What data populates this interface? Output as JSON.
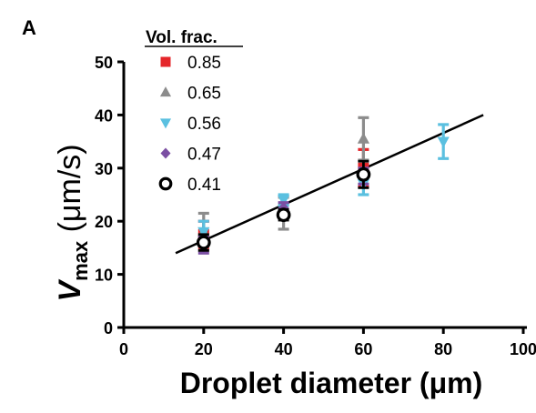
{
  "panel_label": "A",
  "chart_data": {
    "type": "scatter",
    "title": "",
    "xlabel": "Droplet diameter (μm)",
    "ylabel_main": "V",
    "ylabel_sub": "max",
    "ylabel_unit": " (μm/s)",
    "xlim": [
      0,
      100
    ],
    "ylim": [
      0,
      50
    ],
    "x_ticks": [
      0,
      20,
      40,
      60,
      80,
      100
    ],
    "x_tick_labels": [
      "0",
      "20",
      "40",
      "60",
      "80",
      "100"
    ],
    "y_ticks": [
      0,
      10,
      20,
      30,
      40,
      50
    ],
    "y_tick_labels": [
      "0",
      "10",
      "20",
      "30",
      "40",
      "50"
    ],
    "grid": false,
    "legend_title": "Vol. frac.",
    "legend_position": "top-left",
    "series": [
      {
        "name": "0.85",
        "marker": "square",
        "color": "#e5262a",
        "points": [
          {
            "x": 20,
            "y": 17.5,
            "err": 2.5
          },
          {
            "x": 60,
            "y": 30.0,
            "err": 3.5
          }
        ]
      },
      {
        "name": "0.65",
        "marker": "triangle-up",
        "color": "#8c8c8c",
        "points": [
          {
            "x": 20,
            "y": 18.0,
            "err": 3.5
          },
          {
            "x": 40,
            "y": 21.5,
            "err": 3.0
          },
          {
            "x": 60,
            "y": 35.5,
            "err": 4.0
          }
        ]
      },
      {
        "name": "0.56",
        "marker": "triangle-down",
        "color": "#5bc0e0",
        "points": [
          {
            "x": 20,
            "y": 18.0,
            "err": 2.0
          },
          {
            "x": 40,
            "y": 24.0,
            "err": 1.0
          },
          {
            "x": 60,
            "y": 27.0,
            "err": 2.0
          },
          {
            "x": 80,
            "y": 35.0,
            "err": 3.2
          }
        ]
      },
      {
        "name": "0.47",
        "marker": "diamond",
        "color": "#7b4fa3",
        "points": [
          {
            "x": 20,
            "y": 15.5,
            "err": 1.5
          },
          {
            "x": 40,
            "y": 22.5,
            "err": 1.0
          },
          {
            "x": 60,
            "y": 28.5,
            "err": 1.5
          }
        ]
      },
      {
        "name": "0.41",
        "marker": "open-circle",
        "color": "#000000",
        "points": [
          {
            "x": 20,
            "y": 16.0,
            "err": 1.5
          },
          {
            "x": 40,
            "y": 21.2,
            "err": 1.0
          },
          {
            "x": 60,
            "y": 28.8,
            "err": 2.5
          }
        ]
      }
    ],
    "fit_line": {
      "color": "#000000",
      "x": [
        13,
        90
      ],
      "y": [
        14.0,
        40.0
      ]
    }
  }
}
